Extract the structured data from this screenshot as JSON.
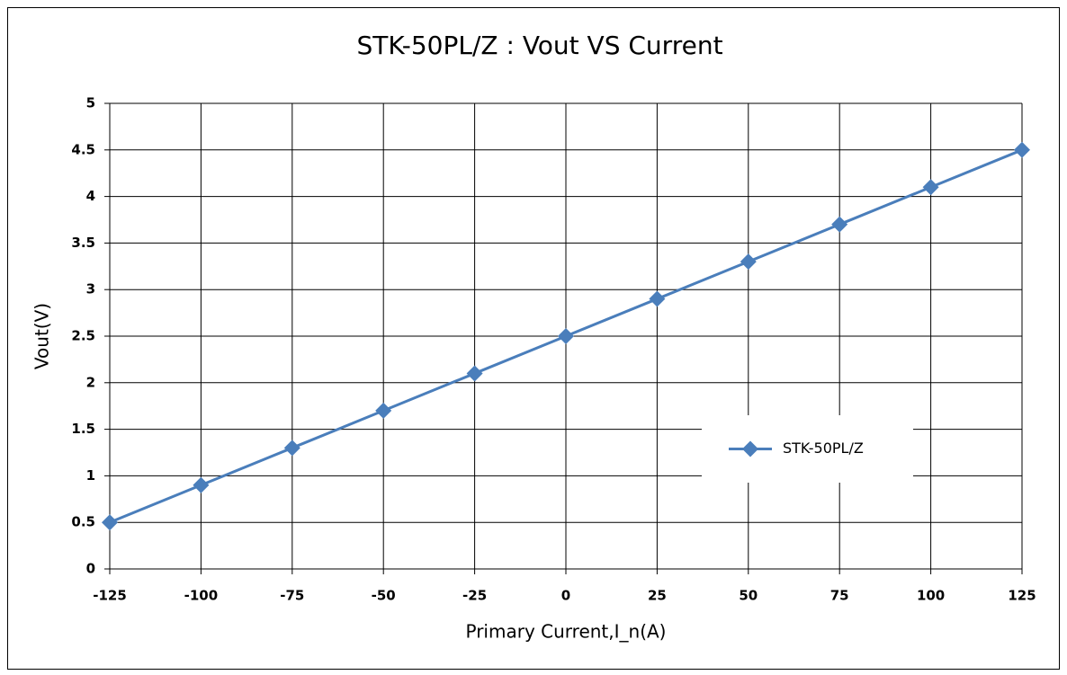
{
  "chart_data": {
    "type": "line",
    "title": "STK-50PL/Z :  Vout VS Current",
    "xlabel": "Primary Current,I_n(A)",
    "ylabel": "Vout(V)",
    "x": [
      -125,
      -100,
      -75,
      -50,
      -25,
      0,
      25,
      50,
      75,
      100,
      125
    ],
    "series": [
      {
        "name": "STK-50PL/Z",
        "color": "#4a7ebb",
        "values": [
          0.5,
          0.9,
          1.3,
          1.7,
          2.1,
          2.5,
          2.9,
          3.3,
          3.7,
          4.1,
          4.5
        ]
      }
    ],
    "xlim": [
      -125,
      125
    ],
    "xticks": [
      -125,
      -100,
      -75,
      -50,
      -25,
      0,
      25,
      50,
      75,
      100,
      125
    ],
    "ylim": [
      0,
      5
    ],
    "yticks": [
      0,
      0.5,
      1,
      1.5,
      2,
      2.5,
      3,
      3.5,
      4,
      4.5,
      5
    ],
    "grid": true,
    "legend": "right"
  }
}
